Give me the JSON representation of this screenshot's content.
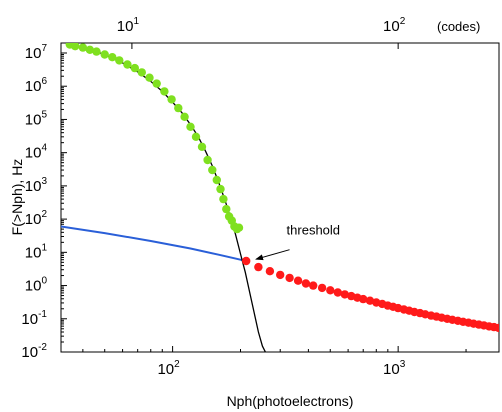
{
  "chart_data": {
    "type": "scatter",
    "xscale": "log",
    "yscale": "log",
    "xlim": [
      32,
      2800
    ],
    "ylim": [
      0.01,
      20000000
    ],
    "xlabel": "Nph(photoelectrons)",
    "ylabel": "F(>Nph), Hz",
    "grid": false,
    "x_ticks": [
      {
        "base": "10",
        "exp": "2",
        "value": 100
      },
      {
        "base": "10",
        "exp": "3",
        "value": 1000
      }
    ],
    "y_ticks": [
      {
        "base": "10",
        "exp": "-2",
        "value": 0.01
      },
      {
        "base": "10",
        "exp": "-1",
        "value": 0.1
      },
      {
        "base": "10",
        "exp": "0",
        "value": 1
      },
      {
        "base": "10",
        "exp": "1",
        "value": 10
      },
      {
        "base": "10",
        "exp": "2",
        "value": 100
      },
      {
        "base": "10",
        "exp": "3",
        "value": 1000
      },
      {
        "base": "10",
        "exp": "4",
        "value": 10000
      },
      {
        "base": "10",
        "exp": "5",
        "value": 100000
      },
      {
        "base": "10",
        "exp": "6",
        "value": 1000000
      },
      {
        "base": "10",
        "exp": "7",
        "value": 10000000
      }
    ],
    "top_axis": {
      "unit_label": "(codes)",
      "ticks": [
        {
          "base": "10",
          "exp": "1",
          "value": 66
        },
        {
          "base": "10",
          "exp": "2",
          "value": 1000
        }
      ]
    },
    "series": [
      {
        "kind": "points",
        "color": "#7fe01f",
        "x": [
          35,
          37,
          40,
          43,
          46,
          50,
          54,
          58,
          63,
          68,
          73,
          79,
          85,
          92,
          99,
          106,
          113,
          120,
          127,
          135,
          143,
          150,
          157,
          163,
          168,
          173,
          178,
          183,
          188,
          193,
          197
        ],
        "y": [
          18000000.0,
          16000000.0,
          14500000.0,
          12500000.0,
          11000000.0,
          9000000.0,
          7500000.0,
          6000000.0,
          4500000.0,
          3500000.0,
          2600000.0,
          1800000.0,
          1200000.0,
          700000.0,
          400000.0,
          220000.0,
          120000.0,
          60000.0,
          30000.0,
          15000.0,
          6000,
          3000,
          1500,
          800,
          400,
          200,
          120,
          90,
          60,
          50,
          55
        ]
      },
      {
        "kind": "points",
        "color": "#ff1a1a",
        "x": [
          212,
          240,
          270,
          300,
          330,
          360,
          390,
          420,
          460,
          500,
          540,
          580,
          620,
          660,
          700,
          750,
          800,
          850,
          900,
          950,
          1000,
          1060,
          1120,
          1180,
          1250,
          1320,
          1400,
          1480,
          1560,
          1650,
          1740,
          1840,
          1940,
          2050,
          2160,
          2280,
          2400,
          2530,
          2660,
          2790
        ],
        "y": [
          5.5,
          3.6,
          2.7,
          2.1,
          1.7,
          1.4,
          1.15,
          1.0,
          0.85,
          0.72,
          0.62,
          0.54,
          0.48,
          0.43,
          0.39,
          0.35,
          0.31,
          0.28,
          0.25,
          0.23,
          0.21,
          0.19,
          0.175,
          0.16,
          0.148,
          0.136,
          0.125,
          0.116,
          0.108,
          0.1,
          0.093,
          0.087,
          0.081,
          0.076,
          0.071,
          0.067,
          0.063,
          0.059,
          0.056,
          0.053
        ]
      },
      {
        "kind": "line",
        "color": "#2a5fd8",
        "x": [
          32,
          50,
          80,
          120,
          160,
          200,
          212
        ],
        "y": [
          60,
          38,
          22,
          13,
          8.5,
          6.0,
          5.5
        ]
      },
      {
        "kind": "line",
        "color": "#000000",
        "x": [
          34,
          40,
          50,
          60,
          70,
          80,
          90,
          100,
          110,
          120,
          130,
          140,
          150,
          160,
          170,
          180,
          190,
          200,
          210,
          220,
          230,
          240,
          250,
          258
        ],
        "y": [
          19000000.0,
          15000000.0,
          9000000.0,
          5000000.0,
          2700000.0,
          1400000.0,
          700000.0,
          330000.0,
          160000.0,
          70000.0,
          30000.0,
          11000.0,
          4000,
          1300,
          400,
          120,
          35,
          9,
          2.5,
          0.6,
          0.15,
          0.04,
          0.015,
          0.01
        ]
      }
    ],
    "annotations": [
      {
        "text": "threshold",
        "arrow_from": [
          330,
          12
        ],
        "arrow_to": [
          225,
          5.8
        ]
      }
    ]
  }
}
